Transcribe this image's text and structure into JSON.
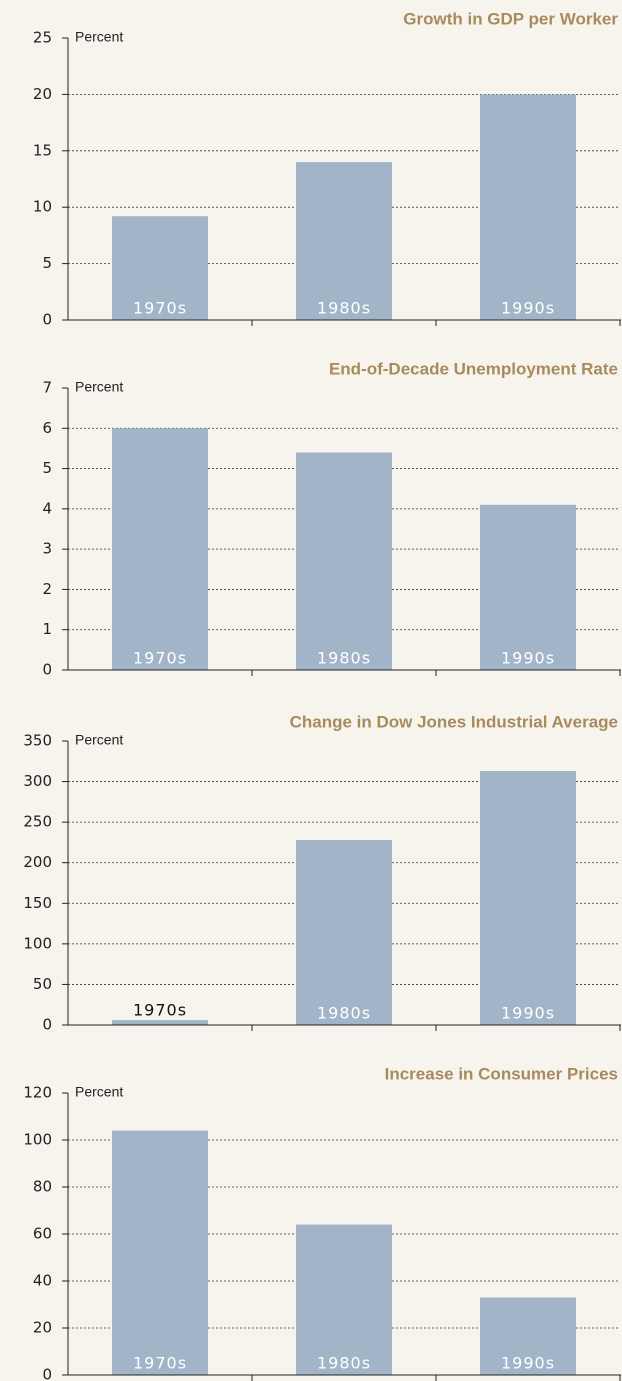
{
  "chart_data": [
    {
      "type": "bar",
      "title": "Growth in GDP per Worker",
      "ylabel": "Percent",
      "categories": [
        "1970s",
        "1980s",
        "1990s"
      ],
      "values": [
        9.2,
        14.0,
        20.0
      ],
      "color": "#a2b5c8",
      "ylim": [
        0,
        25
      ],
      "yticks": [
        0,
        5,
        10,
        15,
        20,
        25
      ],
      "grid": true
    },
    {
      "type": "bar",
      "title": "End-of-Decade Unemployment Rate",
      "ylabel": "Percent",
      "categories": [
        "1970s",
        "1980s",
        "1990s"
      ],
      "values": [
        6.0,
        5.4,
        4.1
      ],
      "color": "#a2b5c8",
      "ylim": [
        0,
        7
      ],
      "yticks": [
        0,
        1,
        2,
        3,
        4,
        5,
        6,
        7
      ],
      "grid": true
    },
    {
      "type": "bar",
      "title": "Change in Dow Jones Industrial Average",
      "ylabel": "Percent",
      "categories": [
        "1970s",
        "1980s",
        "1990s"
      ],
      "values": [
        6,
        228,
        313
      ],
      "color": "#a2b5c8",
      "ylim": [
        0,
        350
      ],
      "yticks": [
        0,
        50,
        100,
        150,
        200,
        250,
        300,
        350
      ],
      "grid": true
    },
    {
      "type": "bar",
      "title": "Increase in Consumer Prices",
      "ylabel": "Percent",
      "categories": [
        "1970s",
        "1980s",
        "1990s"
      ],
      "values": [
        104,
        64,
        33
      ],
      "color": "#a2b5c8",
      "ylim": [
        0,
        120
      ],
      "yticks": [
        0,
        20,
        40,
        60,
        80,
        100,
        120
      ],
      "grid": true
    }
  ]
}
